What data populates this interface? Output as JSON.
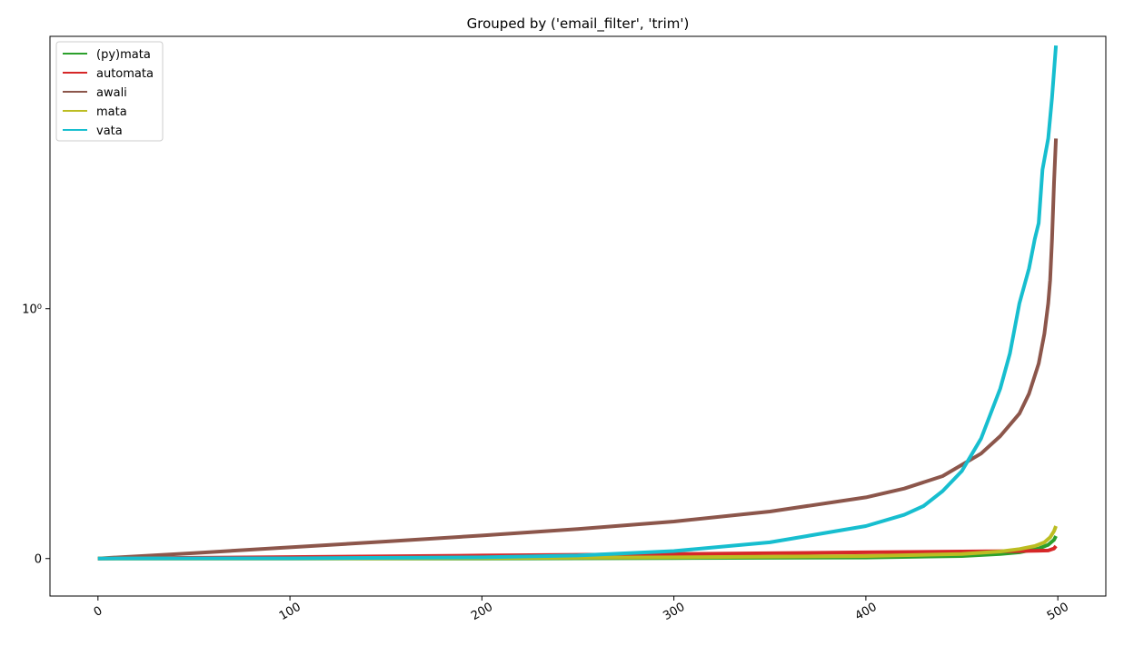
{
  "chart_data": {
    "type": "line",
    "title": "Grouped by ('email_filter', 'trim')",
    "xlabel": "",
    "ylabel": "",
    "xlim": [
      -25,
      525
    ],
    "yscale": "symlog",
    "linthresh": 1,
    "ylim": [
      -0.15,
      12.3
    ],
    "x_ticks": [
      0,
      100,
      200,
      300,
      400,
      500
    ],
    "x_tick_labels": [
      "0",
      "100",
      "200",
      "300",
      "400",
      "500"
    ],
    "y_ticks": [
      0,
      1
    ],
    "y_tick_labels": [
      "0",
      "10⁰"
    ],
    "legend_position": "upper left",
    "grid": false,
    "series": [
      {
        "name": "(py)mata",
        "color": "#2ca02c",
        "x": [
          0,
          100,
          200,
          300,
          400,
          450,
          470,
          480,
          490,
          495,
          498,
          499
        ],
        "y": [
          0,
          0,
          0,
          0.002,
          0.004,
          0.01,
          0.018,
          0.025,
          0.04,
          0.055,
          0.075,
          0.09
        ]
      },
      {
        "name": "automata",
        "color": "#d62728",
        "x": [
          0,
          100,
          200,
          300,
          400,
          450,
          480,
          495,
          498,
          499
        ],
        "y": [
          0,
          0.006,
          0.012,
          0.018,
          0.025,
          0.028,
          0.03,
          0.032,
          0.04,
          0.05
        ]
      },
      {
        "name": "awali",
        "color": "#8c564b",
        "x": [
          0,
          50,
          100,
          150,
          200,
          250,
          300,
          350,
          400,
          420,
          440,
          460,
          470,
          480,
          485,
          490,
          493,
          495,
          496,
          497,
          498,
          499
        ],
        "y": [
          0,
          0.022,
          0.045,
          0.068,
          0.092,
          0.118,
          0.148,
          0.188,
          0.245,
          0.28,
          0.33,
          0.42,
          0.49,
          0.58,
          0.66,
          0.78,
          0.9,
          1.05,
          1.3,
          1.9,
          3.2,
          4.8
        ]
      },
      {
        "name": "mata",
        "color": "#bcbd22",
        "x": [
          0,
          100,
          200,
          300,
          400,
          450,
          470,
          480,
          488,
          493,
          496,
          498,
          499
        ],
        "y": [
          0,
          0,
          0.002,
          0.005,
          0.01,
          0.018,
          0.028,
          0.038,
          0.05,
          0.065,
          0.085,
          0.11,
          0.13
        ]
      },
      {
        "name": "vata",
        "color": "#17becf",
        "x": [
          0,
          100,
          200,
          250,
          300,
          350,
          400,
          420,
          430,
          440,
          450,
          460,
          470,
          475,
          480,
          485,
          488,
          490,
          492,
          495,
          497,
          499
        ],
        "y": [
          0,
          0.001,
          0.005,
          0.012,
          0.03,
          0.065,
          0.13,
          0.175,
          0.21,
          0.27,
          0.35,
          0.48,
          0.68,
          0.82,
          1.05,
          1.45,
          1.9,
          2.2,
          3.6,
          4.8,
          7.0,
          11.3
        ]
      }
    ]
  }
}
